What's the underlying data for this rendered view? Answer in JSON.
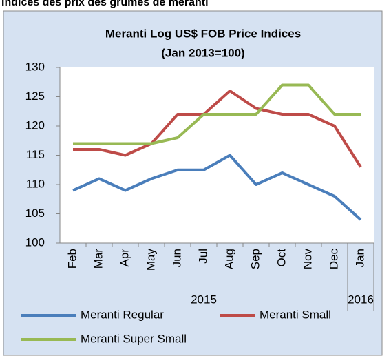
{
  "header": "Indices des prix des grumes de meranti",
  "chart_data": {
    "type": "line",
    "title": [
      "Meranti Log US$ FOB Price Indices",
      "(Jan 2013=100)"
    ],
    "categories": [
      "Feb",
      "Mar",
      "Apr",
      "May",
      "Jun",
      "Jul",
      "Aug",
      "Sep",
      "Oct",
      "Nov",
      "Dec",
      "Jan"
    ],
    "year_groups": [
      "2015",
      "2016"
    ],
    "series": [
      {
        "name": "Meranti Regular",
        "color": "#4a7ebb",
        "values": [
          109,
          111,
          109,
          111,
          112.5,
          112.5,
          115,
          110,
          112,
          110,
          108,
          104
        ]
      },
      {
        "name": "Meranti Small",
        "color": "#be4b48",
        "values": [
          116,
          116,
          115,
          117,
          122,
          122,
          126,
          123,
          122,
          122,
          120,
          113
        ]
      },
      {
        "name": "Meranti Super Small",
        "color": "#98b954",
        "values": [
          117,
          117,
          117,
          117,
          118,
          122,
          122,
          122,
          127,
          127,
          122,
          122
        ]
      }
    ],
    "ylim": [
      100,
      130
    ],
    "yticks": [
      100,
      105,
      110,
      115,
      120,
      125,
      130
    ],
    "grid": false
  }
}
